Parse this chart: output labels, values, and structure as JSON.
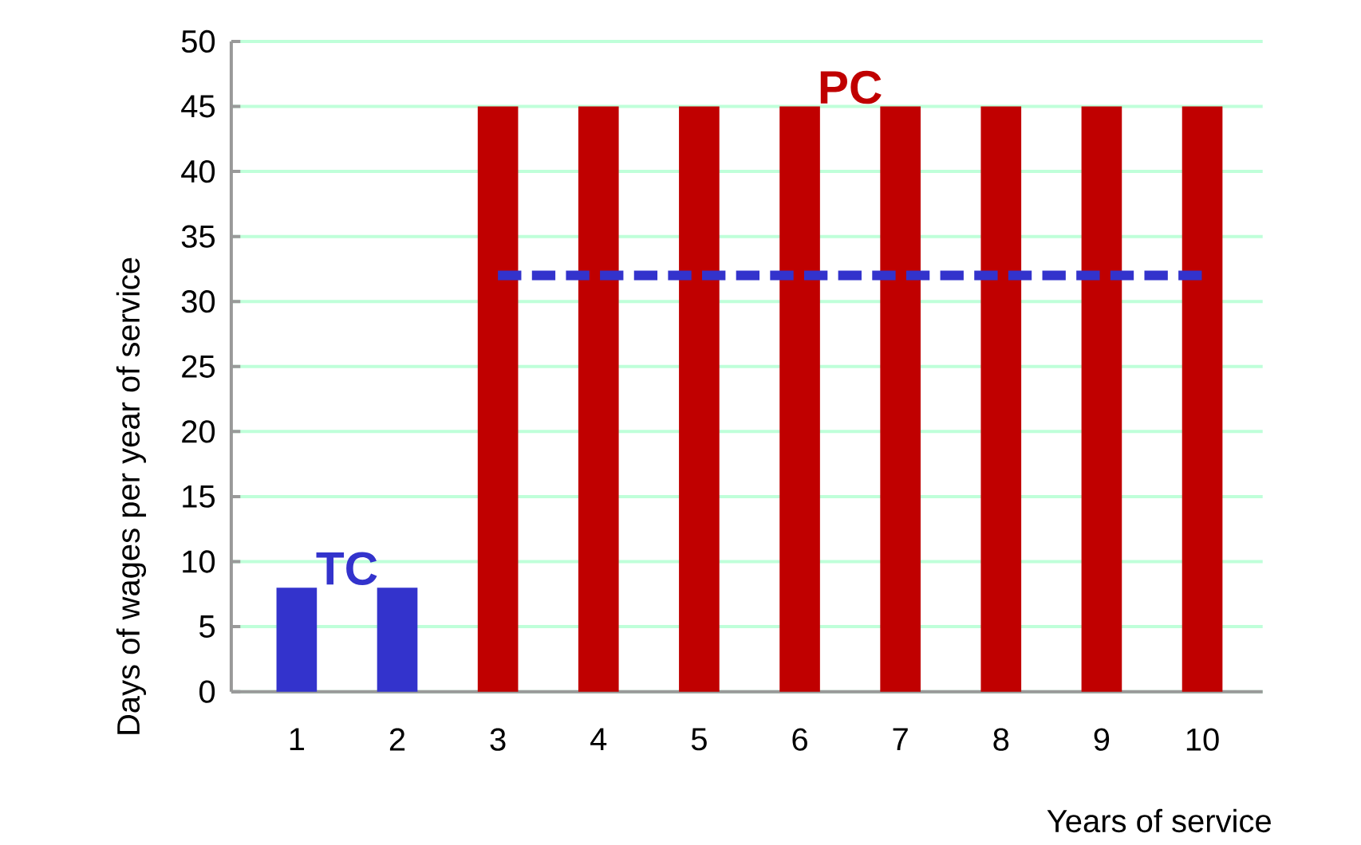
{
  "chart_data": {
    "type": "bar",
    "xlabel": "Years of service",
    "ylabel": "Days of wages per year of service",
    "categories": [
      "1",
      "2",
      "3",
      "4",
      "5",
      "6",
      "7",
      "8",
      "9",
      "10"
    ],
    "series": [
      {
        "name": "TC",
        "color": "#3333cc",
        "values": [
          8,
          8,
          null,
          null,
          null,
          null,
          null,
          null,
          null,
          null
        ]
      },
      {
        "name": "PC",
        "color": "#c00000",
        "values": [
          null,
          null,
          45,
          45,
          45,
          45,
          45,
          45,
          45,
          45
        ]
      },
      {
        "type": "line",
        "line_style": "dashed",
        "color": "#3333cc",
        "values": [
          null,
          null,
          32,
          32,
          32,
          32,
          32,
          32,
          32,
          32
        ]
      }
    ],
    "ylim": [
      0,
      50
    ],
    "yticks": [
      0,
      5,
      10,
      15,
      20,
      25,
      30,
      35,
      40,
      45,
      50
    ],
    "grid": "y"
  }
}
